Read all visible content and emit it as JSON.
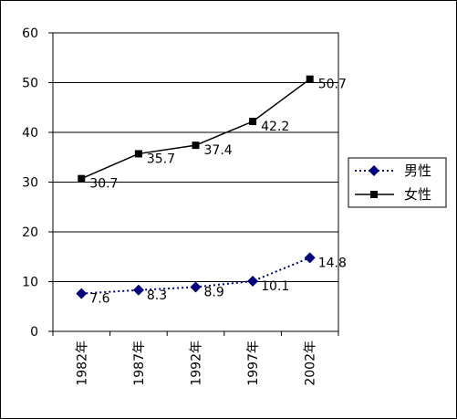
{
  "chart_data": {
    "type": "line",
    "categories": [
      "1982年",
      "1987年",
      "1992年",
      "1997年",
      "2002年"
    ],
    "ylim": [
      0,
      60
    ],
    "yticks": [
      0,
      10,
      20,
      30,
      40,
      50,
      60
    ],
    "grid": "horizontal",
    "legend_position": "right",
    "title": "",
    "xlabel": "",
    "ylabel": "",
    "series": [
      {
        "name": "男性",
        "values": [
          7.6,
          8.3,
          8.9,
          10.1,
          14.8
        ],
        "labels": [
          "7.6",
          "8.3",
          "8.9",
          "10.1",
          "14.8"
        ],
        "color": "#000080",
        "line_style": "dotted",
        "marker": "diamond"
      },
      {
        "name": "女性",
        "values": [
          30.7,
          35.7,
          37.4,
          42.2,
          50.7
        ],
        "labels": [
          "30.7",
          "35.7",
          "37.4",
          "42.2",
          "50.7"
        ],
        "color": "#000000",
        "line_style": "solid",
        "marker": "square"
      }
    ]
  }
}
